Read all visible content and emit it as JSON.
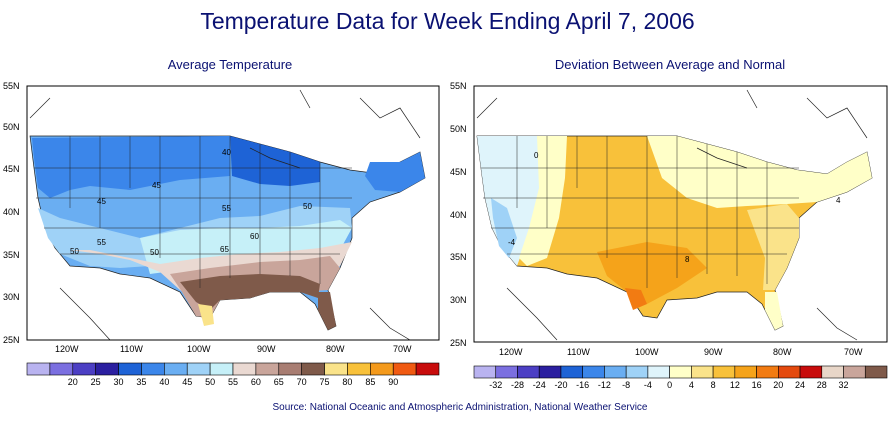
{
  "page_title": "Temperature Data for Week Ending April 7, 2006",
  "source": "Source:  National Oceanic and Atmospheric Administration, National Weather Service",
  "maps": [
    {
      "subtitle": "Average Temperature",
      "lat_labels": [
        "55N",
        "50N",
        "45N",
        "40N",
        "35N",
        "30N",
        "25N"
      ],
      "lon_labels": [
        "120W",
        "110W",
        "100W",
        "90W",
        "80W",
        "70W"
      ],
      "contour_labels": [
        "40",
        "45",
        "45",
        "50",
        "55",
        "60",
        "65",
        "50",
        "50",
        "55",
        "50"
      ],
      "legend": {
        "colors": [
          "#b9b3f0",
          "#7b6fe0",
          "#4c3fc4",
          "#2b1fa0",
          "#1e63d6",
          "#3b86ea",
          "#6aaef2",
          "#9fd2f7",
          "#c6f0f8",
          "#ead9d2",
          "#c9a59b",
          "#a87d72",
          "#7f5a4a",
          "#fae38a",
          "#f8c13a",
          "#f49a1c",
          "#f05a12",
          "#c80c0c"
        ],
        "labels": [
          "20",
          "25",
          "30",
          "35",
          "40",
          "45",
          "50",
          "55",
          "60",
          "65",
          "70",
          "75",
          "80",
          "85",
          "90"
        ]
      }
    },
    {
      "subtitle": "Deviation Between Average and Normal",
      "lat_labels": [
        "55N",
        "50N",
        "45N",
        "40N",
        "35N",
        "30N",
        "25N"
      ],
      "lon_labels": [
        "120W",
        "110W",
        "100W",
        "90W",
        "80W",
        "70W"
      ],
      "contour_labels": [
        "0",
        "-4",
        "8",
        "4"
      ],
      "legend": {
        "colors": [
          "#b9b3f0",
          "#7b6fe0",
          "#4c3fc4",
          "#2b1fa0",
          "#1e63d6",
          "#3b86ea",
          "#6aaef2",
          "#9fd2f7",
          "#dff4fb",
          "#ffffc8",
          "#fae38a",
          "#f8c13a",
          "#f5a31a",
          "#f27b12",
          "#e44a0e",
          "#c80c0c",
          "#e8d6c8",
          "#c9a59b",
          "#7f5a4a"
        ],
        "labels": [
          "-32",
          "-28",
          "-24",
          "-20",
          "-16",
          "-12",
          "-8",
          "-4",
          "0",
          "4",
          "8",
          "12",
          "16",
          "20",
          "24",
          "28",
          "32"
        ]
      }
    }
  ]
}
